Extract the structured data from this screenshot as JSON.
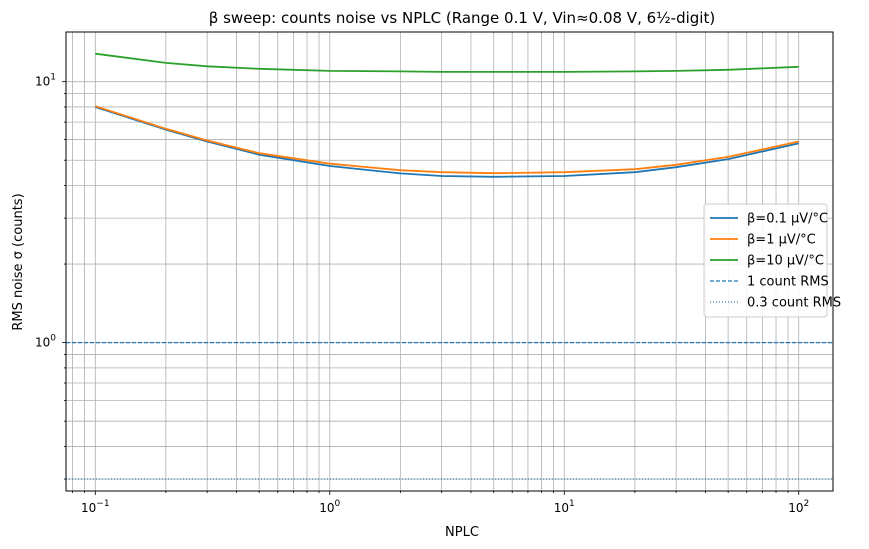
{
  "chart_data": {
    "type": "line",
    "title": "β sweep: counts noise vs NPLC (Range 0.1 V, Vin≈0.08 V, 6½-digit)",
    "xlabel": "NPLC",
    "ylabel": "RMS noise σ (counts)",
    "xscale": "log",
    "yscale": "log",
    "xlim": [
      0.075,
      140
    ],
    "ylim": [
      0.27,
      15.5
    ],
    "grid": "on (major and minor)",
    "legend_placement": "center-right",
    "x_ticks": [
      {
        "value": 0.1,
        "base": "10",
        "exp": "−1"
      },
      {
        "value": 1,
        "base": "10",
        "exp": "0"
      },
      {
        "value": 10,
        "base": "10",
        "exp": "1"
      },
      {
        "value": 100,
        "base": "10",
        "exp": "2"
      }
    ],
    "y_ticks": [
      {
        "value": 1,
        "base": "10",
        "exp": "0"
      },
      {
        "value": 10,
        "base": "10",
        "exp": "1"
      }
    ],
    "x": [
      0.1,
      0.2,
      0.3,
      0.5,
      1,
      2,
      3,
      5,
      10,
      20,
      30,
      50,
      100
    ],
    "series": [
      {
        "name": "β=0.1 µV/°C",
        "color": "#1f77b4",
        "style": "solid",
        "values": [
          8.0,
          6.55,
          5.9,
          5.25,
          4.75,
          4.45,
          4.35,
          4.32,
          4.35,
          4.5,
          4.7,
          5.05,
          5.8
        ]
      },
      {
        "name": "β=1 µV/°C",
        "color": "#ff7f0e",
        "style": "solid",
        "values": [
          8.05,
          6.6,
          5.95,
          5.32,
          4.85,
          4.58,
          4.5,
          4.46,
          4.5,
          4.62,
          4.8,
          5.15,
          5.9
        ]
      },
      {
        "name": "β=10 µV/°C",
        "color": "#2ca02c",
        "style": "solid",
        "values": [
          12.8,
          11.8,
          11.45,
          11.2,
          11.0,
          10.95,
          10.9,
          10.9,
          10.9,
          10.95,
          11.0,
          11.1,
          11.4
        ]
      }
    ],
    "hlines": [
      {
        "name": "1 count RMS",
        "y": 1.0,
        "color": "#1f77b4",
        "style": "dashed"
      },
      {
        "name": "0.3 count RMS",
        "y": 0.3,
        "color": "#1f77b4",
        "style": "dotted"
      }
    ]
  }
}
